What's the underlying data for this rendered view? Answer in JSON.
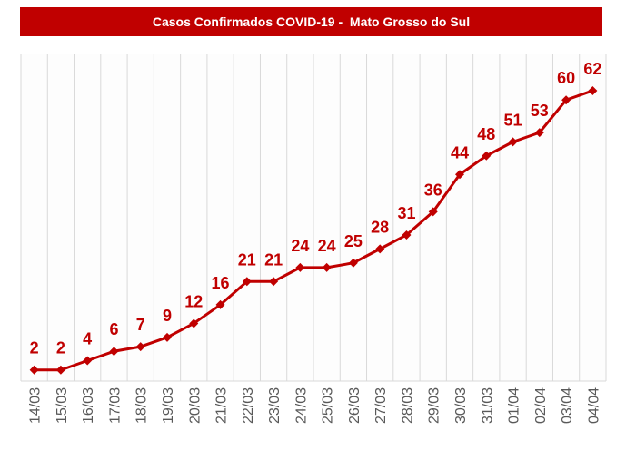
{
  "chart_data": {
    "type": "line",
    "title": "Casos Confirmados COVID-19 -  Mato Grosso do Sul",
    "xlabel": "",
    "ylabel": "",
    "categories": [
      "14/03",
      "15/03",
      "16/03",
      "17/03",
      "18/03",
      "19/03",
      "20/03",
      "21/03",
      "22/03",
      "23/03",
      "24/03",
      "25/03",
      "26/03",
      "27/03",
      "28/03",
      "29/03",
      "30/03",
      "31/03",
      "01/04",
      "02/04",
      "03/04",
      "04/04"
    ],
    "values": [
      2,
      2,
      4,
      6,
      7,
      9,
      12,
      16,
      21,
      21,
      24,
      24,
      25,
      28,
      31,
      36,
      44,
      48,
      51,
      53,
      60,
      62
    ],
    "ylim": [
      0,
      70
    ],
    "grid": "vertical",
    "legend": "none",
    "data_labels": true,
    "marker": "diamond",
    "colors": {
      "line": "#c00000",
      "title_bar": "#c00000",
      "grid": "#d9d9d9",
      "tick_label": "#595959"
    }
  }
}
